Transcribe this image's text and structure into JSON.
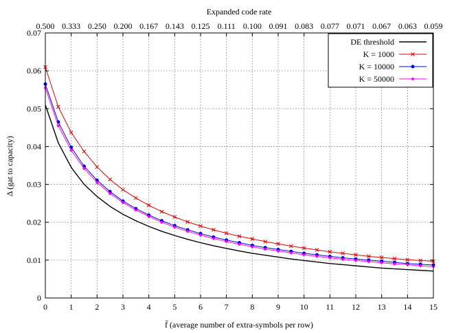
{
  "chart_data": {
    "type": "line",
    "title": "",
    "xlabel": "f̄ (average number of extra-symbols per row)",
    "ylabel": "Δ (gat to capacity)",
    "x2label": "Expanded code rate",
    "xlim": [
      0,
      15
    ],
    "ylim": [
      0,
      0.07
    ],
    "grid": true,
    "legend_position": "top-right",
    "x_ticks": [
      0,
      1,
      2,
      3,
      4,
      5,
      6,
      7,
      8,
      9,
      10,
      11,
      12,
      13,
      14,
      15
    ],
    "x_tick_labels": [
      "0",
      "1",
      "2",
      "3",
      "4",
      "5",
      "6",
      "7",
      "8",
      "9",
      "10",
      "11",
      "12",
      "13",
      "14",
      "15"
    ],
    "y_ticks": [
      0,
      0.01,
      0.02,
      0.03,
      0.04,
      0.05,
      0.06,
      0.07
    ],
    "y_tick_labels": [
      "0",
      "0.01",
      "0.02",
      "0.03",
      "0.04",
      "0.05",
      "0.06",
      "0.07"
    ],
    "x2_tick_labels": [
      "0.500",
      "0.333",
      "0.250",
      "0.200",
      "0.167",
      "0.143",
      "0.125",
      "0.111",
      "0.100",
      "0.091",
      "0.083",
      "0.077",
      "0.071",
      "0.067",
      "0.063",
      "0.059"
    ],
    "x": [
      0,
      0.5,
      1,
      1.5,
      2,
      2.5,
      3,
      3.5,
      4,
      4.5,
      5,
      5.5,
      6,
      6.5,
      7,
      7.5,
      8,
      8.5,
      9,
      9.5,
      10,
      10.5,
      11,
      11.5,
      12,
      12.5,
      13,
      13.5,
      14,
      14.5,
      15
    ],
    "series": [
      {
        "name": "DE threshold",
        "color": "#000000",
        "marker": "none",
        "values": [
          0.051,
          0.041,
          0.0345,
          0.03,
          0.0268,
          0.0242,
          0.0221,
          0.0204,
          0.0189,
          0.0176,
          0.0165,
          0.0155,
          0.0146,
          0.0138,
          0.0131,
          0.0124,
          0.0118,
          0.0113,
          0.0108,
          0.0103,
          0.0099,
          0.0095,
          0.0091,
          0.0088,
          0.0085,
          0.0082,
          0.0079,
          0.0077,
          0.0075,
          0.0073,
          0.0071
        ]
      },
      {
        "name": "K = 1000",
        "color": "#e00000",
        "marker": "x",
        "values": [
          0.061,
          0.0505,
          0.0437,
          0.0387,
          0.0346,
          0.0313,
          0.0286,
          0.0264,
          0.0245,
          0.0228,
          0.0214,
          0.0201,
          0.019,
          0.018,
          0.0171,
          0.0163,
          0.0156,
          0.0149,
          0.0143,
          0.0137,
          0.0132,
          0.0127,
          0.0122,
          0.0118,
          0.0114,
          0.011,
          0.0107,
          0.0104,
          0.0101,
          0.0099,
          0.0097
        ]
      },
      {
        "name": "K = 10000",
        "color": "#0000e0",
        "marker": "dot",
        "values": [
          0.0565,
          0.0465,
          0.0398,
          0.0348,
          0.0311,
          0.0281,
          0.0256,
          0.0236,
          0.0219,
          0.0204,
          0.0191,
          0.018,
          0.017,
          0.0161,
          0.0153,
          0.0146,
          0.0139,
          0.0133,
          0.0128,
          0.0123,
          0.0118,
          0.0114,
          0.011,
          0.0106,
          0.0103,
          0.01,
          0.0097,
          0.0094,
          0.0091,
          0.0089,
          0.0087
        ]
      },
      {
        "name": "K = 50000",
        "color": "#ff00ff",
        "marker": "diamond",
        "values": [
          0.0555,
          0.0455,
          0.039,
          0.0342,
          0.0305,
          0.0276,
          0.0252,
          0.0232,
          0.0215,
          0.02,
          0.0187,
          0.0176,
          0.0166,
          0.0157,
          0.0149,
          0.0142,
          0.0135,
          0.0129,
          0.0124,
          0.0119,
          0.0114,
          0.011,
          0.0106,
          0.0102,
          0.0099,
          0.0096,
          0.0093,
          0.009,
          0.0088,
          0.0085,
          0.0083
        ]
      }
    ]
  }
}
